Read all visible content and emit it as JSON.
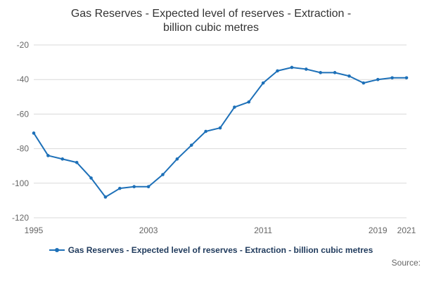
{
  "title": "Gas Reserves - Expected level of reserves - Extraction - billion cubic metres",
  "legend": {
    "label": "Gas Reserves - Expected level of reserves - Extraction - billion cubic metres"
  },
  "source": "Source:",
  "colors": {
    "line": "#1d70b8",
    "grid": "#d9d9d9",
    "axis_text": "#666666",
    "title_text": "#333333",
    "legend_text": "#1f3a5c"
  },
  "chart_data": {
    "type": "line",
    "title": "Gas Reserves - Expected level of reserves - Extraction - billion cubic metres",
    "xlabel": "",
    "ylabel": "",
    "x": [
      1995,
      1996,
      1997,
      1998,
      1999,
      2000,
      2001,
      2002,
      2003,
      2004,
      2005,
      2006,
      2007,
      2008,
      2009,
      2010,
      2011,
      2012,
      2013,
      2014,
      2015,
      2016,
      2017,
      2018,
      2019,
      2020,
      2021
    ],
    "series": [
      {
        "name": "Gas Reserves - Expected level of reserves - Extraction - billion cubic metres",
        "values": [
          -71,
          -84,
          -86,
          -88,
          -97,
          -108,
          -103,
          -102,
          -102,
          -95,
          -86,
          -78,
          -70,
          -68,
          -56,
          -53,
          -42,
          -35,
          -33,
          -34,
          -36,
          -36,
          -38,
          -42,
          -40,
          -39,
          -39
        ]
      }
    ],
    "ylim": [
      -120,
      -20
    ],
    "yticks": [
      -20,
      -40,
      -60,
      -80,
      -100,
      -120
    ],
    "xticks": [
      1995,
      2003,
      2011,
      2019,
      2021
    ],
    "grid": true,
    "legend_position": "bottom",
    "markers": true
  }
}
